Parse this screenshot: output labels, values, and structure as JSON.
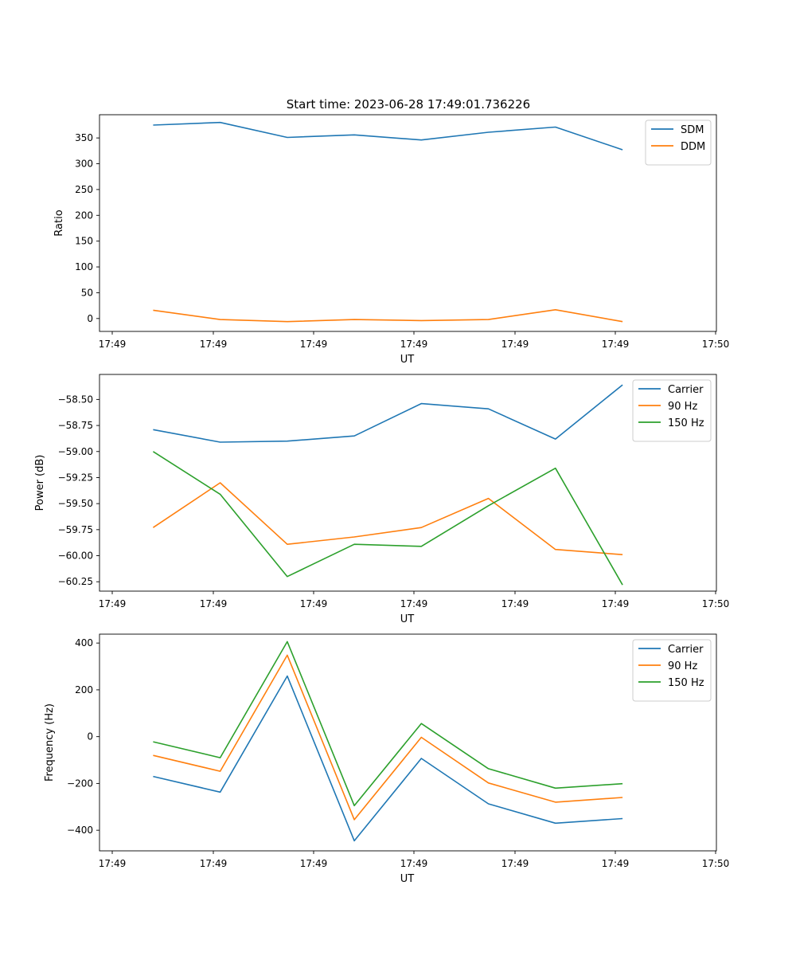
{
  "figure": {
    "title": "Start time: 2023-06-28 17:49:01.736226"
  },
  "chart_data": [
    {
      "type": "line",
      "xlabel": "UT",
      "ylabel": "Ratio",
      "x_tick_labels": [
        "17:49",
        "17:49",
        "17:49",
        "17:49",
        "17:49",
        "17:49",
        "17:50"
      ],
      "x": [
        1,
        2,
        3,
        4,
        5,
        6,
        7,
        8
      ],
      "xlim": [
        0.2,
        9.4
      ],
      "ylim": [
        -25,
        395
      ],
      "y_ticks": [
        0,
        50,
        100,
        150,
        200,
        250,
        300,
        350
      ],
      "legend_position": "top-right",
      "grid": false,
      "series": [
        {
          "name": "SDM",
          "color": "#1f77b4",
          "values": [
            375,
            380,
            351,
            356,
            346,
            361,
            371,
            327
          ]
        },
        {
          "name": "DDM",
          "color": "#ff7f0e",
          "values": [
            16,
            -2,
            -6,
            -2,
            -4,
            -2,
            17,
            -6
          ]
        }
      ]
    },
    {
      "type": "line",
      "xlabel": "UT",
      "ylabel": "Power (dB)",
      "x_tick_labels": [
        "17:49",
        "17:49",
        "17:49",
        "17:49",
        "17:49",
        "17:49",
        "17:50"
      ],
      "x": [
        1,
        2,
        3,
        4,
        5,
        6,
        7,
        8
      ],
      "xlim": [
        0.2,
        9.4
      ],
      "ylim": [
        -60.34,
        -58.26
      ],
      "y_ticks": [
        -60.25,
        -60.0,
        -59.75,
        -59.5,
        -59.25,
        -59.0,
        -58.75,
        -58.5
      ],
      "y_tick_labels": [
        "−60.25",
        "−60.00",
        "−59.75",
        "−59.50",
        "−59.25",
        "−59.00",
        "−58.75",
        "−58.50"
      ],
      "legend_position": "top-right",
      "grid": false,
      "series": [
        {
          "name": "Carrier",
          "color": "#1f77b4",
          "values": [
            -58.79,
            -58.91,
            -58.9,
            -58.85,
            -58.54,
            -58.59,
            -58.88,
            -58.36
          ]
        },
        {
          "name": "90 Hz",
          "color": "#ff7f0e",
          "values": [
            -59.73,
            -59.3,
            -59.89,
            -59.82,
            -59.73,
            -59.45,
            -59.94,
            -59.99
          ]
        },
        {
          "name": "150 Hz",
          "color": "#2ca02c",
          "values": [
            -59.0,
            -59.41,
            -60.2,
            -59.89,
            -59.91,
            -59.52,
            -59.16,
            -60.28
          ]
        }
      ]
    },
    {
      "type": "line",
      "xlabel": "UT",
      "ylabel": "Frequency (Hz)",
      "x_tick_labels": [
        "17:49",
        "17:49",
        "17:49",
        "17:49",
        "17:49",
        "17:49",
        "17:50"
      ],
      "x": [
        1,
        2,
        3,
        4,
        5,
        6,
        7,
        8
      ],
      "xlim": [
        0.2,
        9.4
      ],
      "ylim": [
        -488,
        438
      ],
      "y_ticks": [
        -400,
        -200,
        0,
        200,
        400
      ],
      "y_tick_labels": [
        "−400",
        "−200",
        "0",
        "200",
        "400"
      ],
      "legend_position": "top-right",
      "grid": false,
      "series": [
        {
          "name": "Carrier",
          "color": "#1f77b4",
          "values": [
            -170,
            -237,
            259,
            -445,
            -93,
            -287,
            -370,
            -350
          ]
        },
        {
          "name": "90 Hz",
          "color": "#ff7f0e",
          "values": [
            -80,
            -148,
            348,
            -355,
            -3,
            -198,
            -280,
            -260
          ]
        },
        {
          "name": "150 Hz",
          "color": "#2ca02c",
          "values": [
            -22,
            -90,
            406,
            -295,
            56,
            -137,
            -220,
            -201
          ]
        }
      ]
    }
  ]
}
